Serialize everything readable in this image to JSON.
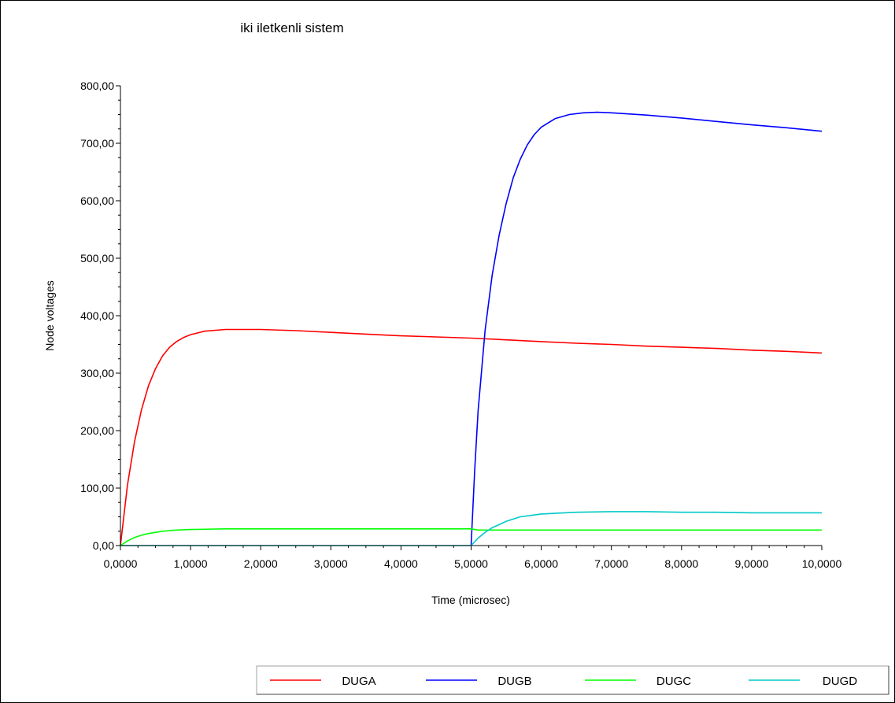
{
  "chart_data": {
    "type": "line",
    "title": "iki iletkenli sistem",
    "xlabel": "Time (microsec)",
    "ylabel": "Node voltages",
    "xlim": [
      0,
      10
    ],
    "ylim": [
      0,
      800
    ],
    "grid": false,
    "legend_position": "bottom-right",
    "xticks": [
      "0,0000",
      "1,0000",
      "2,0000",
      "3,0000",
      "4,0000",
      "5,0000",
      "6,0000",
      "7,0000",
      "8,0000",
      "9,0000",
      "10,0000"
    ],
    "yticks": [
      "0,00",
      "100,00",
      "200,00",
      "300,00",
      "400,00",
      "500,00",
      "600,00",
      "700,00",
      "800,00"
    ],
    "xtick_values": [
      0,
      1,
      2,
      3,
      4,
      5,
      6,
      7,
      8,
      9,
      10
    ],
    "ytick_values": [
      0,
      100,
      200,
      300,
      400,
      500,
      600,
      700,
      800
    ],
    "series": [
      {
        "name": "DUGA",
        "color": "#ff0000",
        "x": [
          0,
          0.1,
          0.2,
          0.3,
          0.4,
          0.5,
          0.6,
          0.7,
          0.8,
          0.9,
          1.0,
          1.2,
          1.5,
          2.0,
          2.5,
          3.0,
          3.5,
          4.0,
          4.5,
          5.0,
          5.5,
          6.0,
          6.5,
          7.0,
          7.5,
          8.0,
          8.5,
          9.0,
          9.5,
          10.0
        ],
        "values": [
          0,
          105,
          180,
          236,
          278,
          308,
          330,
          345,
          355,
          362,
          367,
          373,
          376,
          376,
          374,
          371,
          368,
          365,
          363,
          361,
          358,
          355,
          352,
          350,
          347,
          345,
          343,
          340,
          338,
          335
        ]
      },
      {
        "name": "DUGB",
        "color": "#0000ff",
        "x": [
          5.0,
          5.05,
          5.1,
          5.2,
          5.3,
          5.4,
          5.5,
          5.6,
          5.7,
          5.8,
          5.9,
          6.0,
          6.2,
          6.4,
          6.6,
          6.8,
          7.0,
          7.5,
          8.0,
          8.5,
          9.0,
          9.5,
          10.0
        ],
        "values": [
          0,
          130,
          235,
          375,
          470,
          540,
          595,
          640,
          672,
          697,
          715,
          728,
          743,
          750,
          753,
          754,
          753,
          749,
          744,
          738,
          732,
          727,
          721
        ]
      },
      {
        "name": "DUGC",
        "color": "#00ff00",
        "x": [
          0,
          0.1,
          0.2,
          0.3,
          0.4,
          0.6,
          0.8,
          1.0,
          1.5,
          2.0,
          3.0,
          4.0,
          4.5,
          5.0,
          5.1,
          5.5,
          6.0,
          7.0,
          8.0,
          9.0,
          10.0
        ],
        "values": [
          0,
          8,
          14,
          18,
          21,
          25,
          27,
          28,
          29,
          29,
          29,
          29,
          29,
          29,
          27,
          27,
          27,
          27,
          27,
          27,
          27
        ]
      },
      {
        "name": "DUGD",
        "color": "#00c8c8",
        "x": [
          0,
          1,
          2,
          3,
          4,
          5.0,
          5.1,
          5.2,
          5.3,
          5.5,
          5.7,
          6.0,
          6.5,
          7.0,
          7.5,
          8.0,
          8.5,
          9.0,
          10.0
        ],
        "values": [
          0,
          0,
          0,
          0,
          0,
          0,
          13,
          23,
          31,
          42,
          50,
          55,
          58,
          59,
          59,
          58,
          58,
          57,
          57
        ]
      }
    ]
  }
}
